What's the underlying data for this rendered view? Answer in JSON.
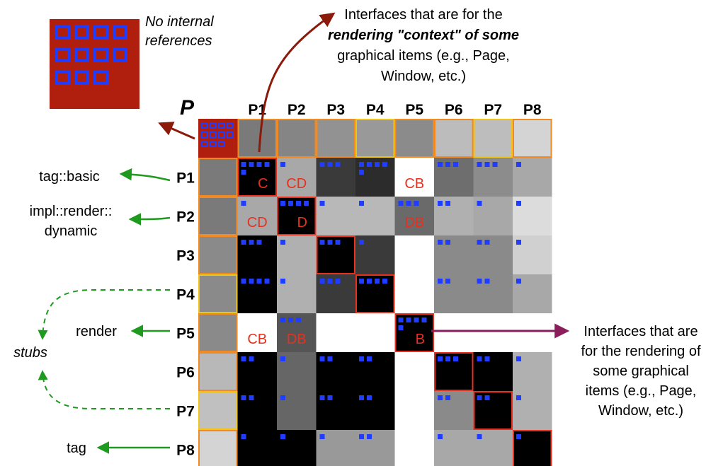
{
  "overview_label": "P",
  "columns": [
    "P1",
    "P2",
    "P3",
    "P4",
    "P5",
    "P6",
    "P7",
    "P8"
  ],
  "rows": [
    "P1",
    "P2",
    "P3",
    "P4",
    "P5",
    "P6",
    "P7",
    "P8"
  ],
  "notes": {
    "no_internal": [
      "No internal",
      "references"
    ],
    "context": [
      "Interfaces that are for the",
      "rendering \"context\" of some",
      "graphical items (e.g., Page,",
      "Window, etc.)"
    ],
    "rendering": [
      "Interfaces that are",
      "for the rendering of",
      "some graphical",
      "items (e.g., Page,",
      "Window, etc.)"
    ],
    "stubs": "stubs"
  },
  "row_labels": {
    "P1": "tag::basic",
    "P2": [
      "impl::render::",
      "dynamic"
    ],
    "P5": "render",
    "P8": "tag"
  },
  "cell_tags": [
    {
      "row": 0,
      "col": 0,
      "text": "C"
    },
    {
      "row": 0,
      "col": 1,
      "text": "CD"
    },
    {
      "row": 0,
      "col": 4,
      "text": "CB"
    },
    {
      "row": 1,
      "col": 0,
      "text": "CD"
    },
    {
      "row": 1,
      "col": 1,
      "text": "D"
    },
    {
      "row": 1,
      "col": 4,
      "text": "DB"
    },
    {
      "row": 4,
      "col": 0,
      "text": "CB"
    },
    {
      "row": 4,
      "col": 1,
      "text": "DB"
    },
    {
      "row": 4,
      "col": 4,
      "text": "B"
    }
  ],
  "colors": {
    "accent_red": "#e8301e",
    "arrow_darkred": "#8b1a0a",
    "arrow_purple": "#8b1d5a",
    "arrow_green": "#1e9a1e",
    "block_red": "#b01f0d",
    "square_blue": "#1f3cff",
    "orange_border": "#f08a24",
    "yellow_border": "#f0c419"
  }
}
